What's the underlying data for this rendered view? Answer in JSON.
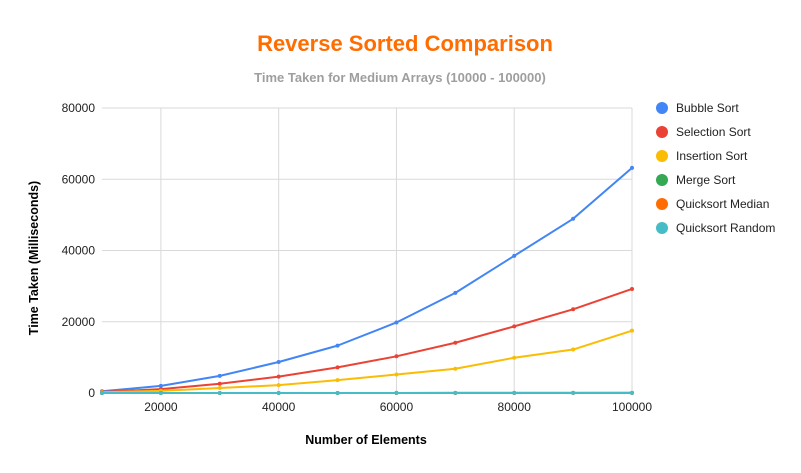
{
  "chart_data": {
    "type": "line",
    "title": "Reverse Sorted Comparison",
    "subtitle": "Time Taken for Medium Arrays (10000 - 100000)",
    "xlabel": "Number of Elements",
    "ylabel": "Time Taken (Milliseconds)",
    "xlim": [
      10000,
      100000
    ],
    "ylim": [
      0,
      80000
    ],
    "xticks": [
      "20000",
      "40000",
      "60000",
      "80000",
      "100000"
    ],
    "yticks": [
      "0",
      "20000",
      "40000",
      "60000",
      "80000"
    ],
    "grid": true,
    "legend_position": "right",
    "x": [
      10000,
      20000,
      30000,
      40000,
      50000,
      60000,
      70000,
      80000,
      90000,
      100000
    ],
    "series": [
      {
        "name": "Bubble Sort",
        "color": "#4285f4",
        "values": [
          500,
          2000,
          4800,
          8700,
          13300,
          19800,
          28100,
          38500,
          48900,
          63200
        ]
      },
      {
        "name": "Selection Sort",
        "color": "#ea4335",
        "values": [
          300,
          1100,
          2600,
          4600,
          7200,
          10300,
          14100,
          18700,
          23500,
          29200
        ]
      },
      {
        "name": "Insertion Sort",
        "color": "#fbbc04",
        "values": [
          200,
          600,
          1400,
          2200,
          3600,
          5200,
          6800,
          9900,
          12200,
          17500
        ]
      },
      {
        "name": "Merge Sort",
        "color": "#34a853",
        "values": [
          3,
          6,
          9,
          12,
          15,
          18,
          21,
          24,
          27,
          30
        ]
      },
      {
        "name": "Quicksort Median",
        "color": "#ff6d01",
        "values": [
          2,
          4,
          6,
          8,
          10,
          12,
          14,
          16,
          18,
          20
        ]
      },
      {
        "name": "Quicksort Random",
        "color": "#46bdc6",
        "values": [
          3,
          6,
          9,
          12,
          15,
          18,
          21,
          24,
          27,
          30
        ]
      }
    ]
  },
  "colors": {
    "title": "#ff6d01",
    "subtitle": "#9e9e9e",
    "grid": "#d9d9d9",
    "baseline": "#333333"
  }
}
